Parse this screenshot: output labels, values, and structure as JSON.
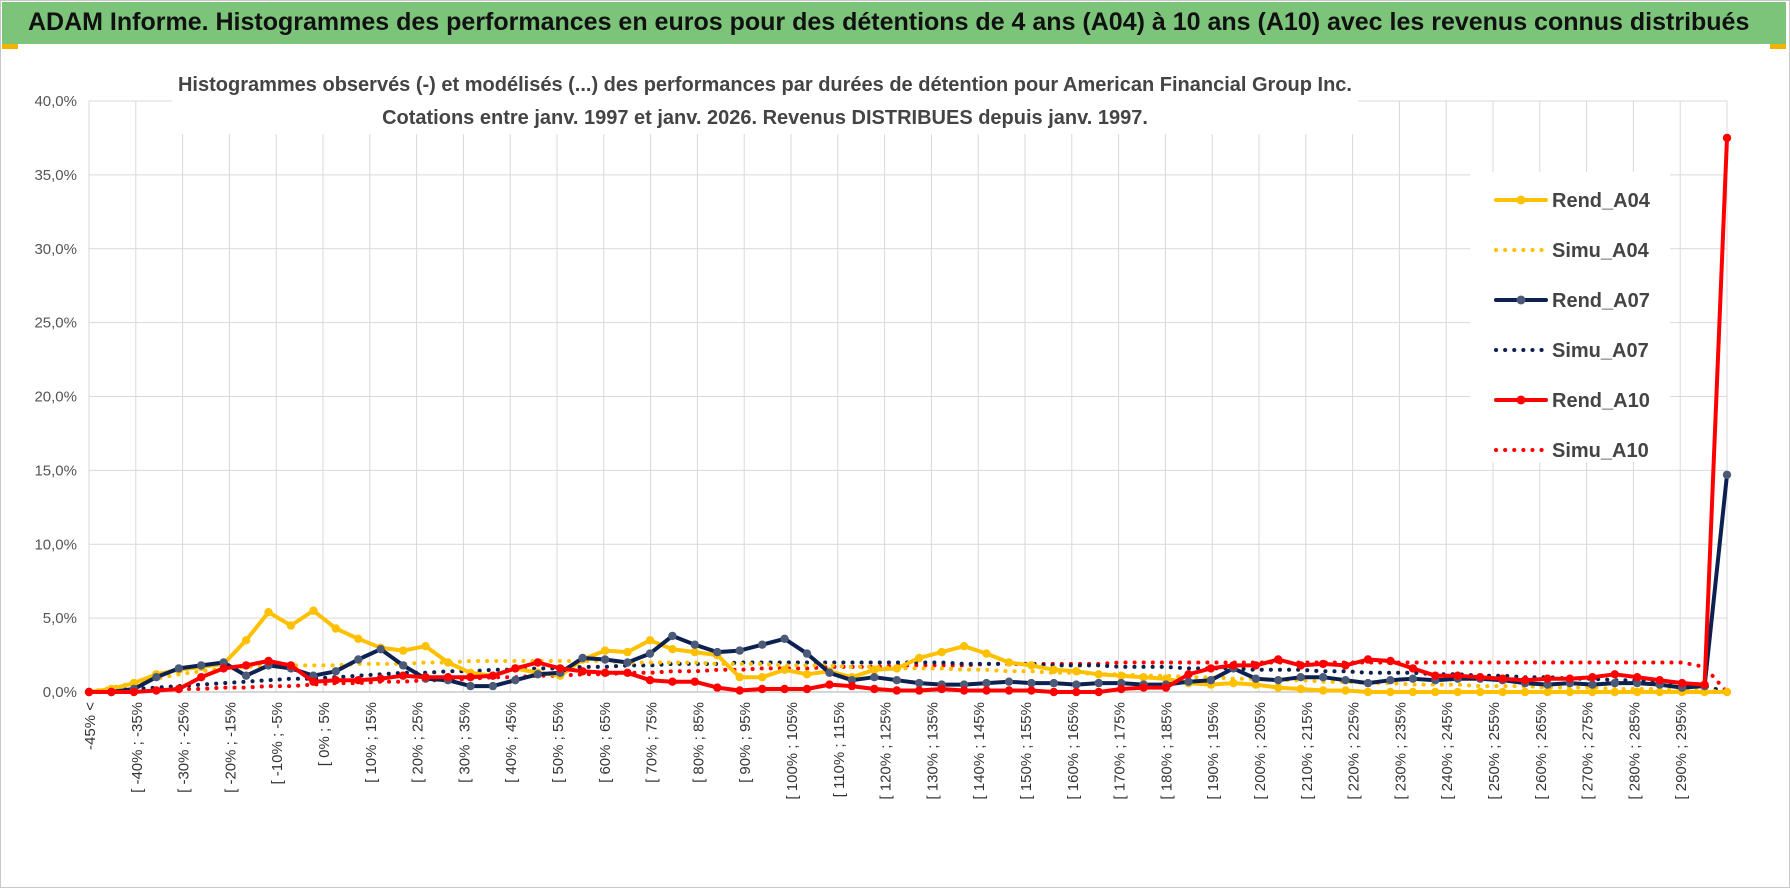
{
  "banner": {
    "title": "ADAM Informe. Histogrammes des performances en euros pour des détentions de 4 ans (A04) à 10 ans (A10) avec les revenus connus distribués"
  },
  "chart_data": {
    "type": "line",
    "title_line1": "Histogrammes observés (-) et modélisés (...) des performances par durées de détention pour American Financial Group Inc.",
    "title_line2": "Cotations entre janv. 1997 et janv. 2026. Revenus DISTRIBUES depuis janv. 1997.",
    "ylim": [
      0,
      40
    ],
    "yticks": [
      "0,0%",
      "5,0%",
      "10,0%",
      "15,0%",
      "20,0%",
      "25,0%",
      "30,0%",
      "35,0%",
      "40,0%"
    ],
    "xticks": [
      "-45% <",
      "[ -40% ; -35%",
      "[ -30% ; -25%",
      "[ -20% ; -15%",
      "[ -10% ; -5%",
      "[ 0% ; 5%",
      "[ 10% ; 15%",
      "[ 20% ; 25%",
      "[ 30% ; 35%",
      "[ 40% ; 45%",
      "[ 50% ; 55%",
      "[ 60% ; 65%",
      "[ 70% ; 75%",
      "[ 80% ; 85%",
      "[ 90% ; 95%",
      "[ 100% ; 105%",
      "[ 110% ; 115%",
      "[ 120% ; 125%",
      "[ 130% ; 135%",
      "[ 140% ; 145%",
      "[ 150% ; 155%",
      "[ 160% ; 165%",
      "[ 170% ; 175%",
      "[ 180% ; 185%",
      "[ 190% ; 195%",
      "[ 200% ; 205%",
      "[ 210% ; 215%",
      "[ 220% ; 225%",
      "[ 230% ; 235%",
      "[ 240% ; 245%",
      "[ 250% ; 255%",
      "[ 260% ; 265%",
      "[ 270% ; 275%",
      "[ 280% ; 285%",
      "[ 290% ; 295%"
    ],
    "series": [
      {
        "name": "Rend_A04",
        "style": "solid",
        "color": "#FFC000",
        "values": [
          0,
          0.2,
          0.6,
          1.2,
          1.5,
          1.7,
          1.9,
          3.5,
          5.4,
          4.5,
          5.5,
          4.3,
          3.6,
          3.0,
          2.8,
          3.1,
          2.0,
          1.3,
          1.1,
          1.6,
          1.3,
          1.1,
          2.2,
          2.8,
          2.7,
          3.5,
          2.9,
          2.7,
          2.5,
          1.0,
          1.0,
          1.5,
          1.2,
          1.4,
          1.0,
          1.5,
          1.6,
          2.3,
          2.7,
          3.1,
          2.6,
          2.0,
          1.8,
          1.5,
          1.4,
          1.2,
          1.1,
          1.0,
          0.9,
          0.6,
          0.5,
          0.6,
          0.5,
          0.3,
          0.2,
          0.1,
          0.1,
          0,
          0,
          0,
          0,
          0,
          0,
          0,
          0,
          0,
          0,
          0,
          0,
          0,
          0,
          0,
          0,
          0
        ]
      },
      {
        "name": "Simu_A04",
        "style": "dotted",
        "color": "#FFC000",
        "values": [
          0,
          0.3,
          0.6,
          0.9,
          1.2,
          1.4,
          1.6,
          1.7,
          1.8,
          1.8,
          1.8,
          1.8,
          1.9,
          1.9,
          1.9,
          2.0,
          2.0,
          2.1,
          2.1,
          2.1,
          2.1,
          2.1,
          2.1,
          2.1,
          2.0,
          2.0,
          2.0,
          2.0,
          1.9,
          1.9,
          1.9,
          1.8,
          1.8,
          1.8,
          1.7,
          1.7,
          1.6,
          1.6,
          1.6,
          1.5,
          1.5,
          1.4,
          1.4,
          1.3,
          1.3,
          1.2,
          1.2,
          1.1,
          1.1,
          1.0,
          1.0,
          0.9,
          0.9,
          0.8,
          0.8,
          0.7,
          0.7,
          0.6,
          0.6,
          0.5,
          0.5,
          0.5,
          0.4,
          0.4,
          0.4,
          0.3,
          0.3,
          0.3,
          0.2,
          0.2,
          0.2,
          0.1,
          0.1,
          0
        ]
      },
      {
        "name": "Rend_A07",
        "style": "solid",
        "color": "#0D2150",
        "values": [
          0,
          0,
          0.2,
          1.0,
          1.6,
          1.8,
          2.0,
          1.1,
          1.8,
          1.6,
          1.1,
          1.4,
          2.2,
          2.9,
          1.8,
          0.9,
          0.8,
          0.4,
          0.4,
          0.8,
          1.2,
          1.3,
          2.3,
          2.2,
          2.0,
          2.6,
          3.8,
          3.2,
          2.7,
          2.8,
          3.2,
          3.6,
          2.6,
          1.3,
          0.8,
          1.0,
          0.8,
          0.6,
          0.5,
          0.5,
          0.6,
          0.7,
          0.6,
          0.6,
          0.5,
          0.6,
          0.6,
          0.5,
          0.5,
          0.7,
          0.8,
          1.6,
          0.9,
          0.8,
          1.0,
          1.0,
          0.8,
          0.6,
          0.8,
          0.9,
          0.8,
          0.9,
          0.9,
          0.8,
          0.6,
          0.5,
          0.6,
          0.5,
          0.6,
          0.6,
          0.5,
          0.3,
          0.4,
          14.7
        ]
      },
      {
        "name": "Simu_A07",
        "style": "dotted",
        "color": "#0D2150",
        "values": [
          0,
          0.1,
          0.2,
          0.3,
          0.4,
          0.5,
          0.6,
          0.7,
          0.8,
          0.9,
          0.9,
          1.0,
          1.1,
          1.2,
          1.3,
          1.3,
          1.4,
          1.4,
          1.5,
          1.5,
          1.6,
          1.6,
          1.7,
          1.7,
          1.8,
          1.8,
          1.9,
          1.9,
          1.9,
          2.0,
          2.0,
          2.0,
          2.0,
          2.0,
          2.0,
          2.0,
          2.0,
          2.0,
          2.0,
          1.9,
          1.9,
          1.9,
          1.9,
          1.8,
          1.8,
          1.8,
          1.7,
          1.7,
          1.7,
          1.6,
          1.6,
          1.6,
          1.5,
          1.5,
          1.5,
          1.4,
          1.4,
          1.3,
          1.3,
          1.3,
          1.2,
          1.2,
          1.1,
          1.1,
          1.0,
          1.0,
          0.9,
          0.9,
          0.8,
          0.8,
          0.7,
          0.6,
          0.4,
          0
        ]
      },
      {
        "name": "Rend_A10",
        "style": "solid",
        "color": "#FF0000",
        "values": [
          0,
          0,
          0,
          0.1,
          0.2,
          1.0,
          1.6,
          1.8,
          2.1,
          1.8,
          0.7,
          0.8,
          0.8,
          0.9,
          1.1,
          1.0,
          1.0,
          1.0,
          1.1,
          1.6,
          2.0,
          1.6,
          1.4,
          1.3,
          1.3,
          0.8,
          0.7,
          0.7,
          0.3,
          0.1,
          0.2,
          0.2,
          0.2,
          0.5,
          0.4,
          0.2,
          0.1,
          0.1,
          0.2,
          0.1,
          0.1,
          0.1,
          0.1,
          0,
          0,
          0,
          0.2,
          0.3,
          0.3,
          1.2,
          1.6,
          1.8,
          1.8,
          2.2,
          1.8,
          1.9,
          1.8,
          2.2,
          2.1,
          1.6,
          1.1,
          1.1,
          1.0,
          0.9,
          0.8,
          0.9,
          0.9,
          1.0,
          1.2,
          1.0,
          0.8,
          0.6,
          0.5,
          37.5
        ]
      },
      {
        "name": "Simu_A10",
        "style": "dotted",
        "color": "#FF0000",
        "values": [
          0,
          0.1,
          0.1,
          0.1,
          0.2,
          0.2,
          0.3,
          0.3,
          0.4,
          0.4,
          0.5,
          0.6,
          0.6,
          0.7,
          0.7,
          0.8,
          0.8,
          0.9,
          1.0,
          1.0,
          1.1,
          1.1,
          1.2,
          1.2,
          1.3,
          1.3,
          1.4,
          1.4,
          1.5,
          1.5,
          1.6,
          1.6,
          1.6,
          1.7,
          1.7,
          1.7,
          1.8,
          1.8,
          1.8,
          1.8,
          1.9,
          1.9,
          1.9,
          1.9,
          1.9,
          1.9,
          2.0,
          2.0,
          2.0,
          2.0,
          2.0,
          2.0,
          2.0,
          2.0,
          2.0,
          2.0,
          2.0,
          2.0,
          2.0,
          2.0,
          2.0,
          2.0,
          2.0,
          2.0,
          2.0,
          2.0,
          2.0,
          2.0,
          2.0,
          2.0,
          2.0,
          2.0,
          1.7,
          0
        ]
      }
    ],
    "legend_position": "top-right"
  }
}
